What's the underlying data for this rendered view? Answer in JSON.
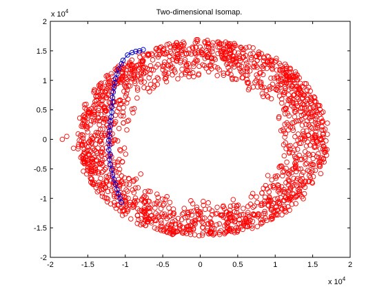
{
  "chart_data": {
    "type": "scatter",
    "title": "Two-dimensional Isomap.",
    "xlabel": "",
    "ylabel": "",
    "xlim": [
      -20000,
      20000
    ],
    "ylim": [
      -20000,
      20000
    ],
    "x_ticks": [
      -20000,
      -15000,
      -10000,
      -5000,
      0,
      5000,
      10000,
      15000,
      20000
    ],
    "y_ticks": [
      -20000,
      -15000,
      -10000,
      -5000,
      0,
      5000,
      10000,
      15000,
      20000
    ],
    "x_tick_labels": [
      "-2",
      "-1.5",
      "-1",
      "-0.5",
      "0",
      "0.5",
      "1",
      "1.5",
      "2"
    ],
    "y_tick_labels": [
      "-2",
      "-1.5",
      "-1",
      "-0.5",
      "0",
      "0.5",
      "1",
      "1.5",
      "2"
    ],
    "x_multiplier": {
      "base": "x 10",
      "exponent": "4"
    },
    "y_multiplier": {
      "base": "x 10",
      "exponent": "4"
    },
    "grid": false,
    "series": [
      {
        "marker": "circle",
        "color": "#ff0000",
        "line": false,
        "shape": "annulus",
        "center": [
          300,
          0
        ],
        "outer_radius": [
          16500,
          16800
        ],
        "inner_radius": [
          10000,
          10300
        ],
        "theta_range_deg": [
          -210,
          150
        ],
        "approx_count": 1800
      },
      {
        "marker": "circle",
        "color": "#0000cc",
        "line": true,
        "points": [
          [
            -7600,
            15200
          ],
          [
            -8100,
            15000
          ],
          [
            -8600,
            14900
          ],
          [
            -9100,
            14700
          ],
          [
            -9700,
            14300
          ],
          [
            -10300,
            13400
          ],
          [
            -10500,
            12800
          ],
          [
            -10900,
            11900
          ],
          [
            -11100,
            11100
          ],
          [
            -11300,
            10300
          ],
          [
            -11400,
            9600
          ],
          [
            -11500,
            8800
          ],
          [
            -11600,
            8000
          ],
          [
            -11700,
            7100
          ],
          [
            -11700,
            6300
          ],
          [
            -11800,
            5500
          ],
          [
            -11800,
            4600
          ],
          [
            -11900,
            3800
          ],
          [
            -12000,
            3000
          ],
          [
            -12000,
            2200
          ],
          [
            -12100,
            1400
          ],
          [
            -12100,
            600
          ],
          [
            -12200,
            -200
          ],
          [
            -12100,
            -1000
          ],
          [
            -12200,
            -1800
          ],
          [
            -12000,
            -2600
          ],
          [
            -12100,
            -3400
          ],
          [
            -12000,
            -4300
          ],
          [
            -11800,
            -5100
          ],
          [
            -11700,
            -6000
          ],
          [
            -11500,
            -6800
          ],
          [
            -11300,
            -7600
          ],
          [
            -11100,
            -8500
          ],
          [
            -10900,
            -9300
          ],
          [
            -10700,
            -10000
          ],
          [
            -10500,
            -10700
          ]
        ]
      }
    ]
  }
}
